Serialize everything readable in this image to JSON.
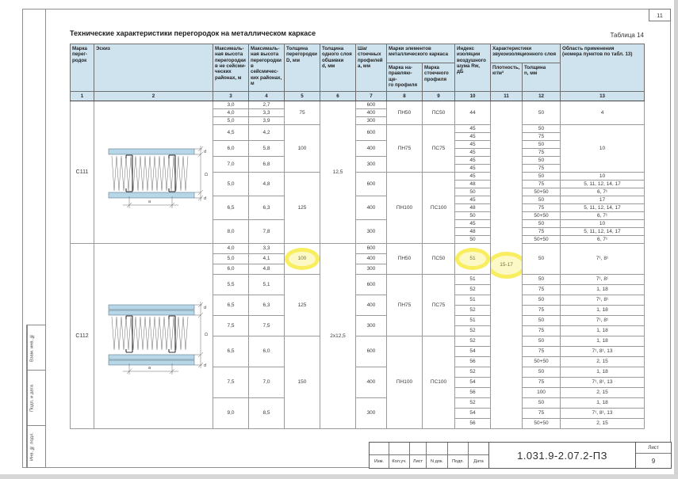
{
  "page": {
    "sheet_number_top": "11",
    "title": "Технические характеристики перегородок на металлическом каркасе",
    "table_label": "Таблица 14"
  },
  "stamps": {
    "left": [
      "Взам. инв. №",
      "Подп. и дата",
      "Инв. № подл."
    ]
  },
  "title_block": {
    "doc_number": "1.031.9-2.07.2-ПЗ",
    "labels": [
      "Изм.",
      "Кол.уч.",
      "Лист",
      "N док.",
      "Подп.",
      "Дата"
    ],
    "sheet_label": "Лист",
    "sheet_value": "9"
  },
  "table": {
    "header": {
      "c1": "Марка\nперег-\nродок",
      "c2": "Эскиз",
      "c3": "Максималь-\nная высота\nперегородки\nв не сейсми-\nческих\nрайонах, м",
      "c4": "Максималь-\nная высота\nперегородки\nв сейсмичес-\nких районах,\nм",
      "c5": "Толщина\nперегородки\nD, мм",
      "c6": "Толщина\nодного слоя\nобшивки\nd, мм",
      "c7": "Шаг\nстоечных\nпрофилей\nа, мм",
      "c8_9": "Марки элементов\nметаллического каркаса",
      "c8": "Марка на-\nправляю-ще-\nго профиля",
      "c9": "Марка\nстоечного\nпрофиля",
      "c10": "Индекс\nизоляции\nвоздушного\nшума Rw,\nдБ",
      "c11_12": "Характеристики\nзвукоизоляционного слоя",
      "c11": "Плотность,\nкг/м³",
      "c12": "Толщина\nn, мм",
      "c13": "Область применения\n(номера пунктов по табл. 13)",
      "numbers": [
        "1",
        "2",
        "3",
        "4",
        "5",
        "6",
        "7",
        "8",
        "9",
        "10",
        "11",
        "12",
        "13"
      ]
    },
    "sketch_labels": {
      "a": "a",
      "D": "D",
      "d": "d"
    },
    "rows": [
      [
        {
          "t": "С111",
          "rs": 18,
          "cls": "mark"
        },
        {
          "sketch": "c111",
          "rs": 18
        },
        {
          "t": "3,0"
        },
        {
          "t": "2,7"
        },
        {
          "t": "75",
          "rs": 3
        },
        {
          "t": "12,5",
          "rs": 18
        },
        {
          "t": "600"
        },
        {
          "t": "ПН50",
          "rs": 3
        },
        {
          "t": "ПС50",
          "rs": 3
        },
        {
          "t": "44",
          "rs": 3
        },
        {
          "t": "15-17",
          "rs": 36,
          "cls": "hl hl-wide"
        },
        {
          "t": "50",
          "rs": 3
        },
        {
          "t": "4",
          "rs": 3
        }
      ],
      [
        {
          "t": "4,0"
        },
        {
          "t": "3,3"
        },
        {
          "t": "400"
        }
      ],
      [
        {
          "t": "5,0"
        },
        {
          "t": "3,9"
        },
        {
          "t": "300"
        }
      ],
      [
        {
          "t": "4,5",
          "rs": 2
        },
        {
          "t": "4,2",
          "rs": 2
        },
        {
          "t": "100",
          "rs": 6
        },
        {
          "t": "600",
          "rs": 2
        },
        {
          "t": "ПН75",
          "rs": 6
        },
        {
          "t": "ПС75",
          "rs": 6
        },
        {
          "t": "45"
        },
        {
          "t": "50"
        },
        {
          "t": "10",
          "rs": 6
        }
      ],
      [
        {
          "t": "45"
        },
        {
          "t": "75"
        }
      ],
      [
        {
          "t": "6,0",
          "rs": 2
        },
        {
          "t": "5,8",
          "rs": 2
        },
        {
          "t": "400",
          "rs": 2
        },
        {
          "t": "45"
        },
        {
          "t": "50"
        }
      ],
      [
        {
          "t": "45"
        },
        {
          "t": "75"
        }
      ],
      [
        {
          "t": "7,0",
          "rs": 2
        },
        {
          "t": "6,8",
          "rs": 2
        },
        {
          "t": "300",
          "rs": 2
        },
        {
          "t": "45"
        },
        {
          "t": "50"
        }
      ],
      [
        {
          "t": "45"
        },
        {
          "t": "75"
        }
      ],
      [
        {
          "t": "5,0",
          "rs": 3
        },
        {
          "t": "4,8",
          "rs": 3
        },
        {
          "t": "125",
          "rs": 9
        },
        {
          "t": "600",
          "rs": 3
        },
        {
          "t": "ПН100",
          "rs": 9
        },
        {
          "t": "ПС100",
          "rs": 9
        },
        {
          "t": "45"
        },
        {
          "t": "50"
        },
        {
          "t": "10"
        }
      ],
      [
        {
          "t": "48"
        },
        {
          "t": "75"
        },
        {
          "t": "5, 11, 12, 14, 17"
        }
      ],
      [
        {
          "t": "50"
        },
        {
          "t": "50+50"
        },
        {
          "t": "6, 7¹"
        }
      ],
      [
        {
          "t": "6,5",
          "rs": 3
        },
        {
          "t": "6,3",
          "rs": 3
        },
        {
          "t": "400",
          "rs": 3
        },
        {
          "t": "45"
        },
        {
          "t": "50"
        },
        {
          "t": "17"
        }
      ],
      [
        {
          "t": "48"
        },
        {
          "t": "75"
        },
        {
          "t": "5, 11, 12, 14, 17"
        }
      ],
      [
        {
          "t": "50"
        },
        {
          "t": "50+50"
        },
        {
          "t": "6, 7¹"
        }
      ],
      [
        {
          "t": "8,0",
          "rs": 3
        },
        {
          "t": "7,8",
          "rs": 3
        },
        {
          "t": "300",
          "rs": 3
        },
        {
          "t": "45"
        },
        {
          "t": "50"
        },
        {
          "t": "10"
        }
      ],
      [
        {
          "t": "48"
        },
        {
          "t": "75"
        },
        {
          "t": "5, 11, 12, 14, 17"
        }
      ],
      [
        {
          "t": "50"
        },
        {
          "t": "50+50"
        },
        {
          "t": "6, 7¹"
        }
      ],
      [
        {
          "t": "С112",
          "rs": 18,
          "cls": "mark"
        },
        {
          "sketch": "c112",
          "rs": 18
        },
        {
          "t": "4,0"
        },
        {
          "t": "3,3"
        },
        {
          "t": "100",
          "rs": 3,
          "cls": "hl"
        },
        {
          "t": "2х12,5",
          "rs": 18
        },
        {
          "t": "600"
        },
        {
          "t": "ПН50",
          "rs": 3
        },
        {
          "t": "ПС50",
          "rs": 3
        },
        {
          "t": "51",
          "rs": 3,
          "cls": "hl"
        },
        {
          "t": "50",
          "rs": 3
        },
        {
          "t": "7¹, 8¹",
          "rs": 3
        }
      ],
      [
        {
          "t": "5,0"
        },
        {
          "t": "4,1"
        },
        {
          "t": "400"
        }
      ],
      [
        {
          "t": "6,0"
        },
        {
          "t": "4,8"
        },
        {
          "t": "300"
        }
      ],
      [
        {
          "t": "5,5",
          "rs": 2
        },
        {
          "t": "5,1",
          "rs": 2
        },
        {
          "t": "125",
          "rs": 6
        },
        {
          "t": "600",
          "rs": 2
        },
        {
          "t": "ПН75",
          "rs": 6
        },
        {
          "t": "ПС75",
          "rs": 6
        },
        {
          "t": "51"
        },
        {
          "t": "50"
        },
        {
          "t": "7¹, 8¹"
        }
      ],
      [
        {
          "t": "52"
        },
        {
          "t": "75"
        },
        {
          "t": "1, 18"
        }
      ],
      [
        {
          "t": "6,5",
          "rs": 2
        },
        {
          "t": "6,3",
          "rs": 2
        },
        {
          "t": "400",
          "rs": 2
        },
        {
          "t": "51"
        },
        {
          "t": "50"
        },
        {
          "t": "7¹, 8¹"
        }
      ],
      [
        {
          "t": "52"
        },
        {
          "t": "75"
        },
        {
          "t": "1, 18"
        }
      ],
      [
        {
          "t": "7,5",
          "rs": 2
        },
        {
          "t": "7,5",
          "rs": 2
        },
        {
          "t": "300",
          "rs": 2
        },
        {
          "t": "51"
        },
        {
          "t": "50"
        },
        {
          "t": "7¹, 8¹"
        }
      ],
      [
        {
          "t": "52"
        },
        {
          "t": "75"
        },
        {
          "t": "1, 18"
        }
      ],
      [
        {
          "t": "6,5",
          "rs": 3
        },
        {
          "t": "6,0",
          "rs": 3
        },
        {
          "t": "150",
          "rs": 9
        },
        {
          "t": "600",
          "rs": 3
        },
        {
          "t": "ПН100",
          "rs": 9
        },
        {
          "t": "ПС100",
          "rs": 9
        },
        {
          "t": "52"
        },
        {
          "t": "50"
        },
        {
          "t": "1, 18"
        }
      ],
      [
        {
          "t": "54"
        },
        {
          "t": "75"
        },
        {
          "t": "7¹, 8¹, 13"
        }
      ],
      [
        {
          "t": "56"
        },
        {
          "t": "50+50"
        },
        {
          "t": "2, 15"
        }
      ],
      [
        {
          "t": "7,5",
          "rs": 3
        },
        {
          "t": "7,0",
          "rs": 3
        },
        {
          "t": "400",
          "rs": 3
        },
        {
          "t": "52"
        },
        {
          "t": "50"
        },
        {
          "t": "1, 18"
        }
      ],
      [
        {
          "t": "54"
        },
        {
          "t": "75"
        },
        {
          "t": "7¹, 8¹, 13"
        }
      ],
      [
        {
          "t": "56"
        },
        {
          "t": "100"
        },
        {
          "t": "2, 15"
        }
      ],
      [
        {
          "t": "9,0",
          "rs": 3
        },
        {
          "t": "8,5",
          "rs": 3
        },
        {
          "t": "300",
          "rs": 3
        },
        {
          "t": "52"
        },
        {
          "t": "50"
        },
        {
          "t": "1, 18"
        }
      ],
      [
        {
          "t": "54"
        },
        {
          "t": "75"
        },
        {
          "t": "7¹, 8¹, 13"
        }
      ],
      [
        {
          "t": "56"
        },
        {
          "t": "50+50"
        },
        {
          "t": "2, 15"
        }
      ]
    ]
  }
}
